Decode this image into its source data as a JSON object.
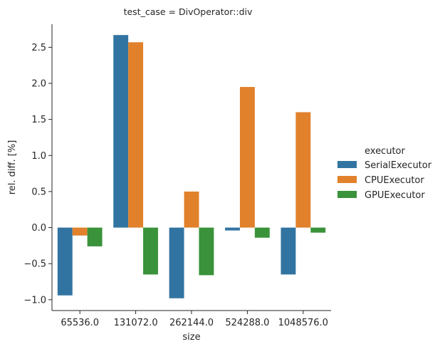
{
  "chart_data": {
    "type": "bar",
    "title": "test_case = DivOperator::div",
    "xlabel": "size",
    "ylabel": "rel. diff. [%]",
    "categories": [
      "65536.0",
      "131072.0",
      "262144.0",
      "524288.0",
      "1048576.0"
    ],
    "ylim": [
      -1.15,
      2.82
    ],
    "yticks": [
      -1.0,
      -0.5,
      0.0,
      0.5,
      1.0,
      1.5,
      2.0,
      2.5
    ],
    "ytick_labels": [
      "−1.0",
      "−0.5",
      "0.0",
      "0.5",
      "1.0",
      "1.5",
      "2.0",
      "2.5"
    ],
    "grid": false,
    "legend": {
      "title": "executor",
      "placement": "right-outside"
    },
    "series": [
      {
        "name": "SerialExecutor",
        "color": "#3274a1",
        "values": [
          -0.94,
          2.67,
          -0.98,
          -0.04,
          -0.65
        ]
      },
      {
        "name": "CPUExecutor",
        "color": "#e1812c",
        "values": [
          -0.11,
          2.57,
          0.5,
          1.95,
          1.6
        ]
      },
      {
        "name": "GPUExecutor",
        "color": "#3a923a",
        "values": [
          -0.26,
          -0.65,
          -0.66,
          -0.14,
          -0.07
        ]
      }
    ]
  }
}
